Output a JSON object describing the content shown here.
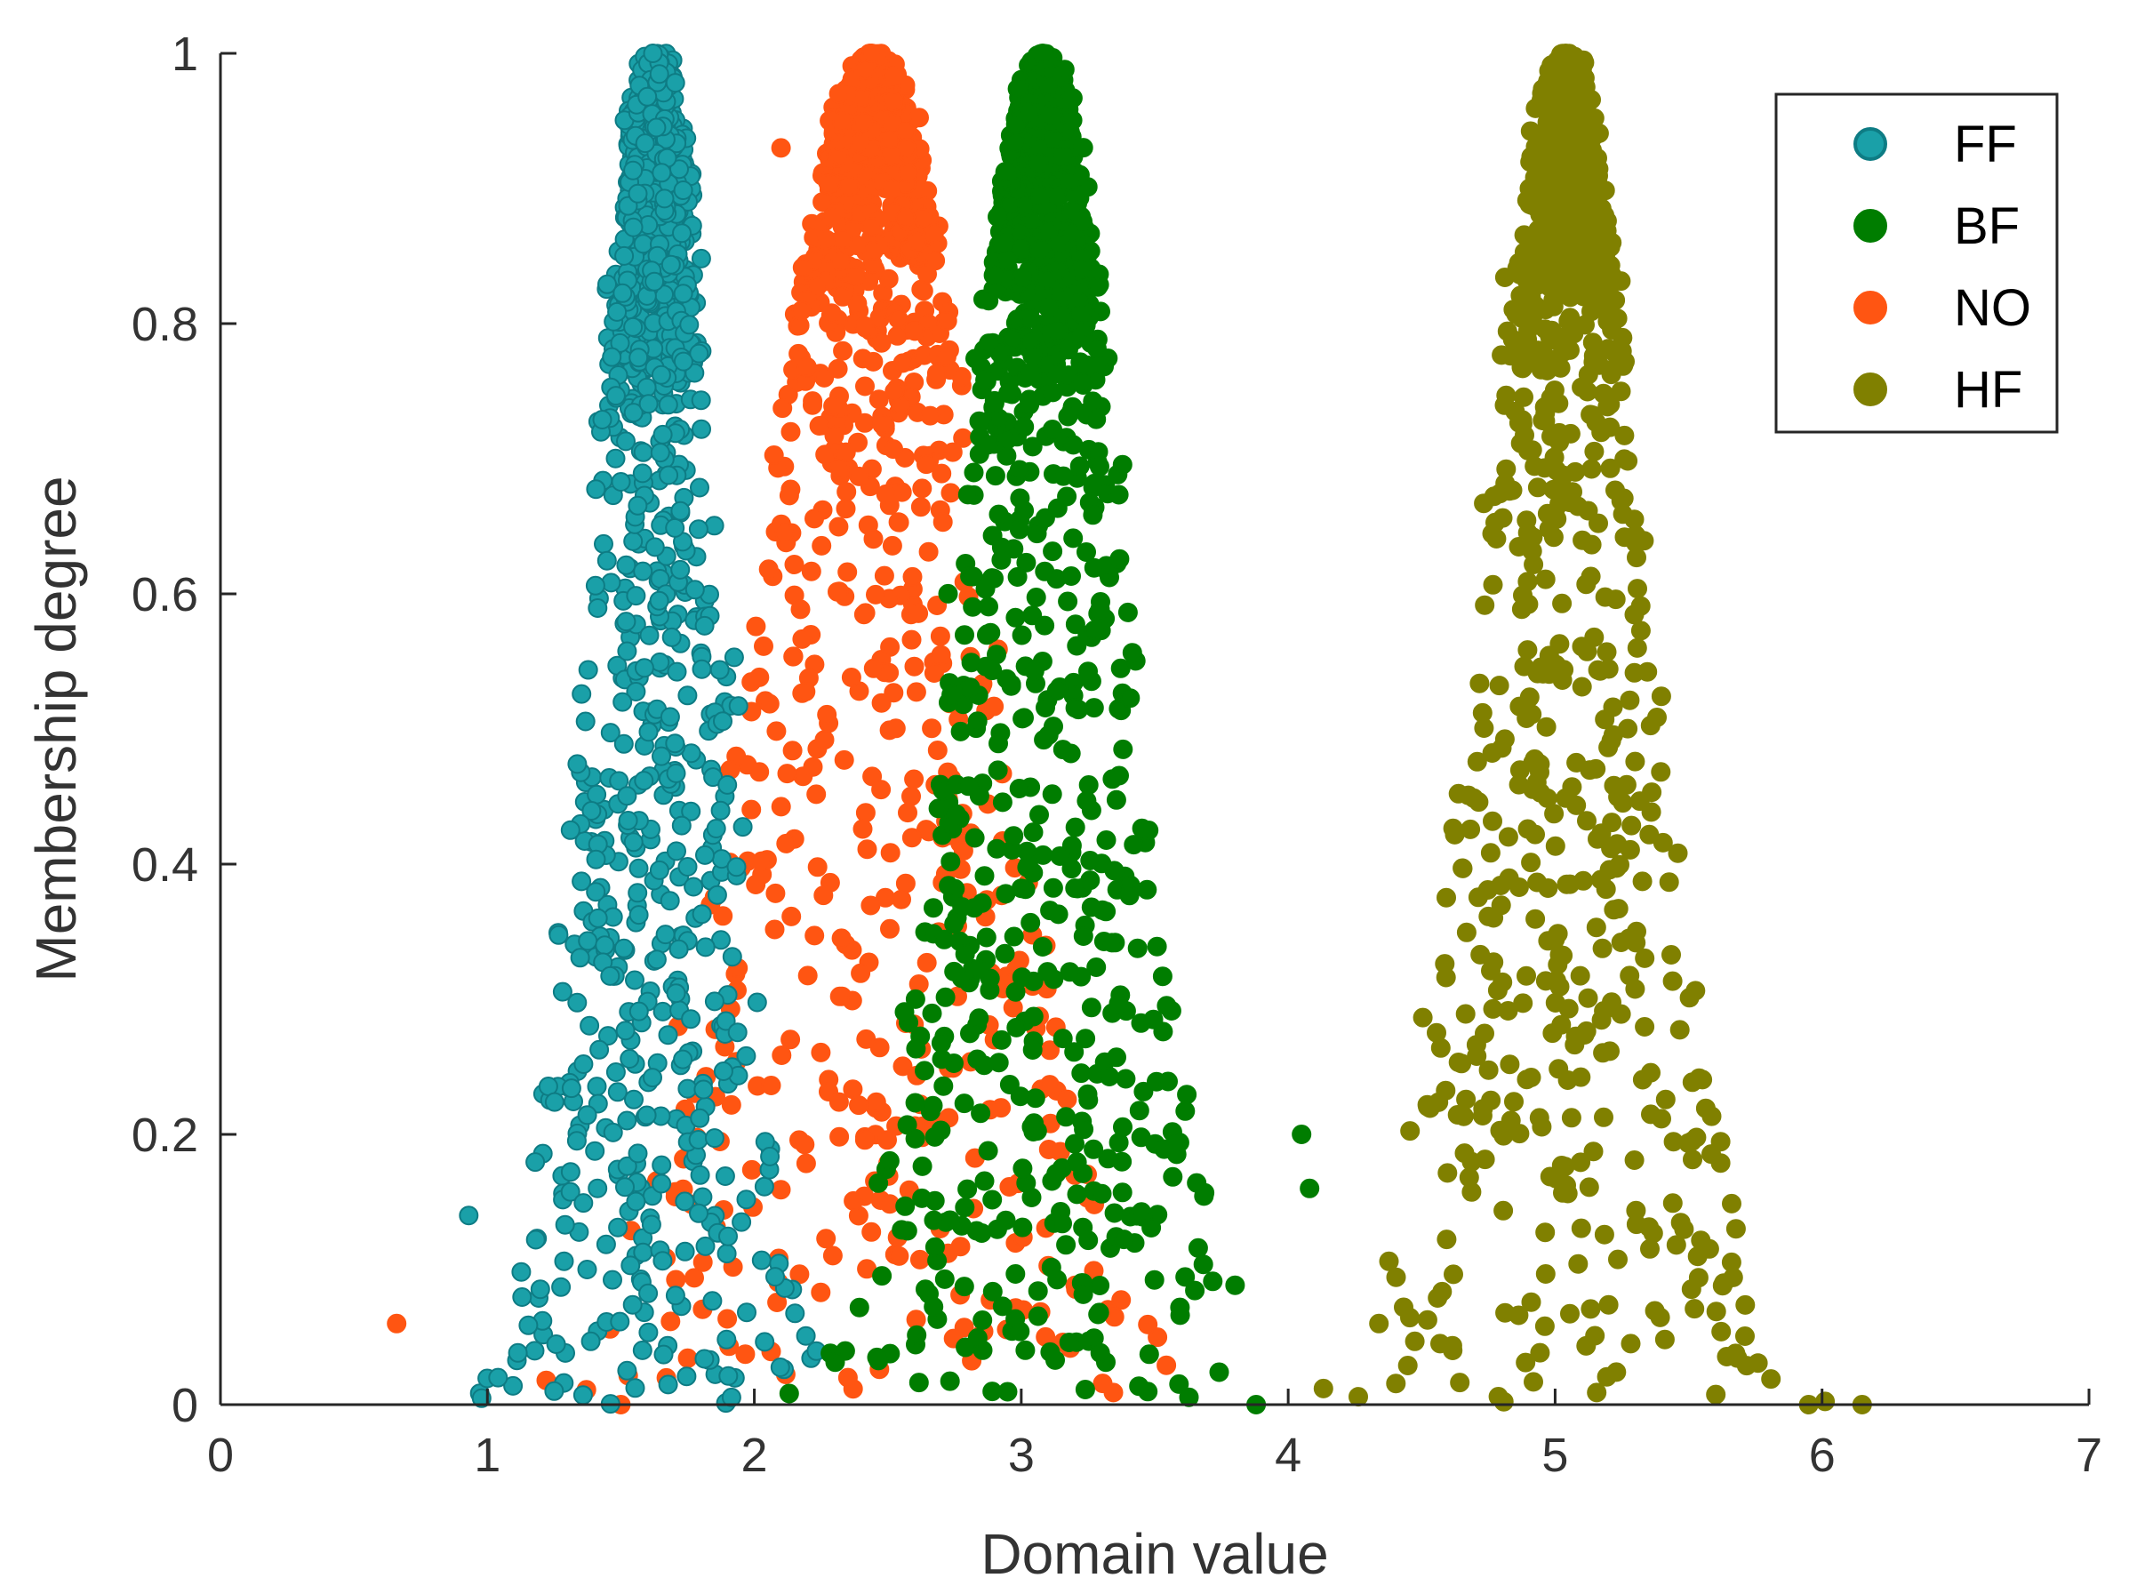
{
  "chart_data": {
    "type": "scatter",
    "title": "",
    "xlabel": "Domain value",
    "ylabel": "Membership degree",
    "xlim": [
      0,
      7
    ],
    "ylim": [
      0,
      1
    ],
    "xticks": [
      "0",
      "1",
      "2",
      "3",
      "4",
      "5",
      "6",
      "7"
    ],
    "yticks": [
      "0",
      "0.2",
      "0.4",
      "0.6",
      "0.8",
      "1"
    ],
    "grid": false,
    "legend_position": "top-right",
    "distribution": "Gaussian-shaped membership; each class peaks at membership 1 at its center and spreads wider as membership falls",
    "series": [
      {
        "name": "FF",
        "color": "#1AA0A8",
        "edge_color": "#0E7C84",
        "marker": "open-edged circle",
        "center": 1.63,
        "spread": 0.23,
        "count": 1100
      },
      {
        "name": "BF",
        "color": "#007D00",
        "edge_color": "#007D00",
        "marker": "filled circle",
        "center": 3.08,
        "spread": 0.3,
        "count": 1100
      },
      {
        "name": "NO",
        "color": "#FF5512",
        "edge_color": "#FF5512",
        "marker": "filled circle",
        "center": 2.44,
        "spread": 0.42,
        "count": 950
      },
      {
        "name": "HF",
        "color": "#808000",
        "edge_color": "#808000",
        "marker": "filled circle",
        "center": 5.04,
        "spread": 0.3,
        "count": 1000
      }
    ],
    "sample_points": {
      "FF": [
        [
          0.93,
          0.14
        ],
        [
          1.04,
          0.02
        ],
        [
          1.25,
          0.01
        ],
        [
          1.62,
          1.0
        ]
      ],
      "NO": [
        [
          0.66,
          0.06
        ],
        [
          1.5,
          0.0
        ],
        [
          2.1,
          0.93
        ],
        [
          2.44,
          1.0
        ]
      ],
      "BF": [
        [
          3.88,
          0.0
        ],
        [
          4.05,
          0.2
        ],
        [
          4.08,
          0.16
        ],
        [
          3.08,
          1.0
        ]
      ],
      "HF": [
        [
          4.34,
          0.06
        ],
        [
          5.95,
          0.0
        ],
        [
          6.15,
          0.0
        ],
        [
          5.04,
          1.0
        ]
      ]
    }
  }
}
